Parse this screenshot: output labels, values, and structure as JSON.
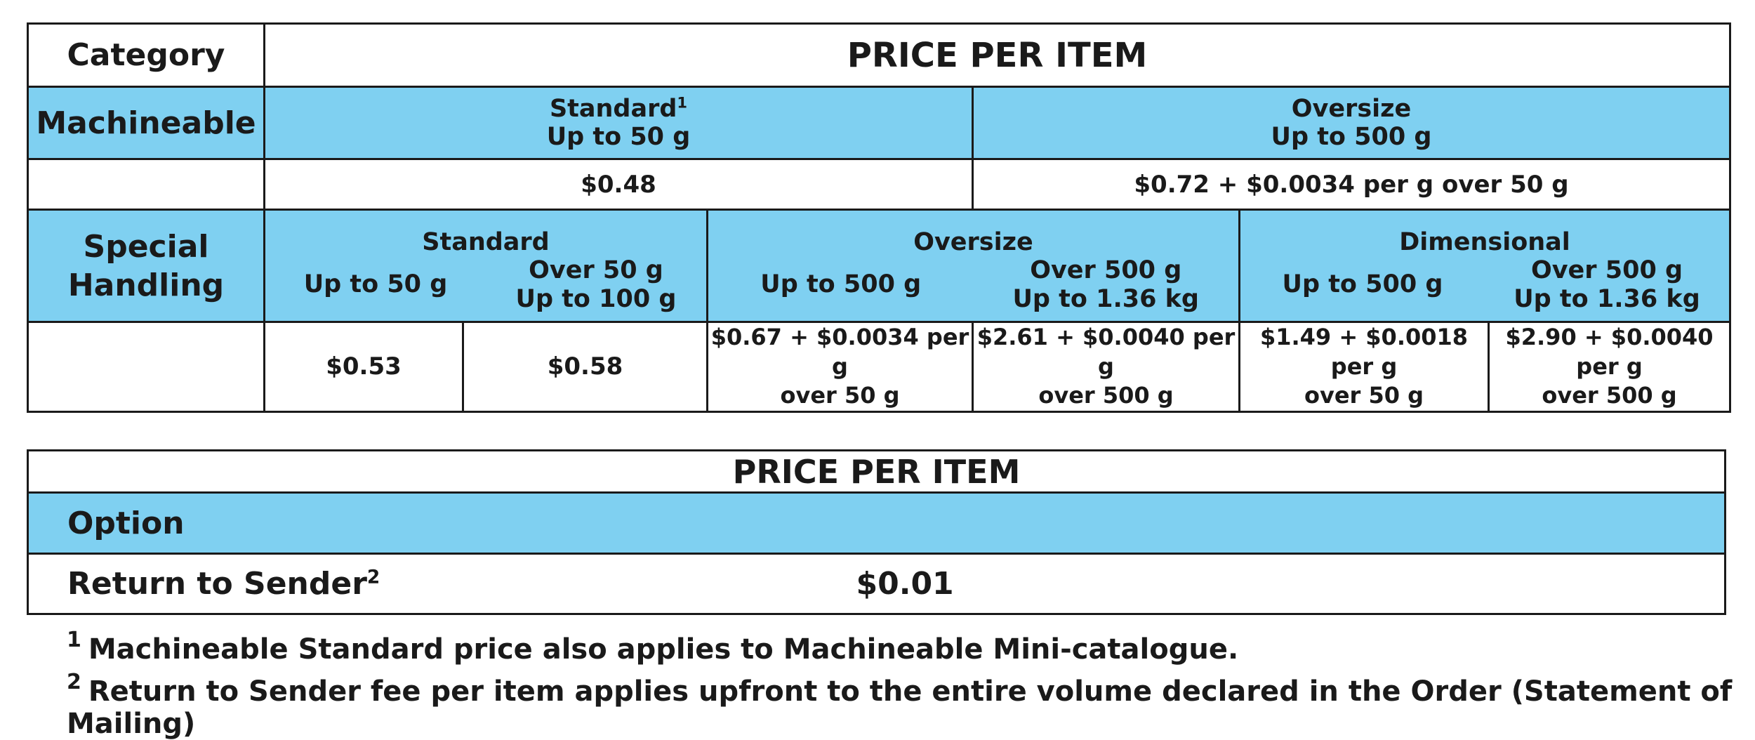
{
  "main_table": {
    "category_label": "Category",
    "title": "PRICE PER ITEM",
    "machineable": {
      "label": "Machineable",
      "standard": {
        "name": "Standard",
        "footnote_mark": "1",
        "weight": "Up to 50 g",
        "price": "$0.48"
      },
      "oversize": {
        "name": "Oversize",
        "weight": "Up to 500 g",
        "price": "$0.72 + $0.0034 per g over 50 g"
      }
    },
    "special_handling": {
      "label_line1": "Special",
      "label_line2": "Handling",
      "standard": {
        "name": "Standard",
        "col1_weight": "Up to 50 g",
        "col2_weight_line1": "Over 50 g",
        "col2_weight_line2": "Up to 100 g",
        "col1_price": "$0.53",
        "col2_price": "$0.58"
      },
      "oversize": {
        "name": "Oversize",
        "col1_weight": "Up to 500 g",
        "col2_weight_line1": "Over 500 g",
        "col2_weight_line2": "Up to 1.36 kg",
        "col1_price_line1": "$0.67 + $0.0034 per g",
        "col1_price_line2": "over 50 g",
        "col2_price_line1": "$2.61 + $0.0040 per g",
        "col2_price_line2": "over 500 g"
      },
      "dimensional": {
        "name": "Dimensional",
        "col1_weight": "Up to 500 g",
        "col2_weight_line1": "Over 500 g",
        "col2_weight_line2": "Up to 1.36 kg",
        "col1_price_line1": "$1.49 + $0.0018 per g",
        "col1_price_line2": "over 50 g",
        "col2_price_line1": "$2.90 + $0.0040 per g",
        "col2_price_line2": "over 500 g"
      }
    }
  },
  "option_table": {
    "title": "PRICE PER ITEM",
    "option_label": "Option",
    "return_to_sender": {
      "label": "Return to Sender",
      "footnote_mark": "2",
      "price": "$0.01"
    }
  },
  "footnotes": [
    {
      "mark": "1",
      "text": "Machineable Standard price also applies to Machineable Mini-catalogue."
    },
    {
      "mark": "2",
      "text": "Return to Sender fee per item applies upfront to the entire volume declared in the Order (Statement of Mailing)"
    }
  ],
  "colors": {
    "header_blue": "#7fd0f1",
    "border": "#1a1a1a"
  }
}
